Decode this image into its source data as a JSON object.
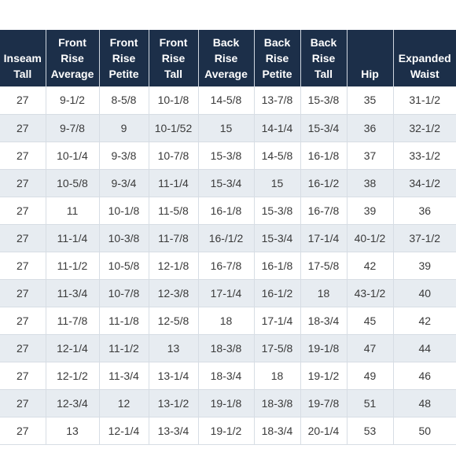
{
  "table": {
    "headers": [
      [
        "Inseam",
        "Tall"
      ],
      [
        "Front",
        "Rise",
        "Average"
      ],
      [
        "Front",
        "Rise",
        "Petite"
      ],
      [
        "Front",
        "Rise",
        "Tall"
      ],
      [
        "Back",
        "Rise",
        "Average"
      ],
      [
        "Back",
        "Rise",
        "Petite"
      ],
      [
        "Back",
        "Rise",
        "Tall"
      ],
      [
        "Hip"
      ],
      [
        "Expanded",
        "Waist"
      ]
    ],
    "rows": [
      [
        "27",
        "9-1/2",
        "8-5/8",
        "10-1/8",
        "14-5/8",
        "13-7/8",
        "15-3/8",
        "35",
        "31-1/2"
      ],
      [
        "27",
        "9-7/8",
        "9",
        "10-1/52",
        "15",
        "14-1/4",
        "15-3/4",
        "36",
        "32-1/2"
      ],
      [
        "27",
        "10-1/4",
        "9-3/8",
        "10-7/8",
        "15-3/8",
        "14-5/8",
        "16-1/8",
        "37",
        "33-1/2"
      ],
      [
        "27",
        "10-5/8",
        "9-3/4",
        "11-1/4",
        "15-3/4",
        "15",
        "16-1/2",
        "38",
        "34-1/2"
      ],
      [
        "27",
        "11",
        "10-1/8",
        "11-5/8",
        "16-1/8",
        "15-3/8",
        "16-7/8",
        "39",
        "36"
      ],
      [
        "27",
        "11-1/4",
        "10-3/8",
        "11-7/8",
        "16-/1/2",
        "15-3/4",
        "17-1/4",
        "40-1/2",
        "37-1/2"
      ],
      [
        "27",
        "11-1/2",
        "10-5/8",
        "12-1/8",
        "16-7/8",
        "16-1/8",
        "17-5/8",
        "42",
        "39"
      ],
      [
        "27",
        "11-3/4",
        "10-7/8",
        "12-3/8",
        "17-1/4",
        "16-1/2",
        "18",
        "43-1/2",
        "40"
      ],
      [
        "27",
        "11-7/8",
        "11-1/8",
        "12-5/8",
        "18",
        "17-1/4",
        "18-3/4",
        "45",
        "42"
      ],
      [
        "27",
        "12-1/4",
        "11-1/2",
        "13",
        "18-3/8",
        "17-5/8",
        "19-1/8",
        "47",
        "44"
      ],
      [
        "27",
        "12-1/2",
        "11-3/4",
        "13-1/4",
        "18-3/4",
        "18",
        "19-1/2",
        "49",
        "46"
      ],
      [
        "27",
        "12-3/4",
        "12",
        "13-1/2",
        "19-1/8",
        "18-3/8",
        "19-7/8",
        "51",
        "48"
      ],
      [
        "27",
        "13",
        "12-1/4",
        "13-3/4",
        "19-1/2",
        "18-3/4",
        "20-1/4",
        "53",
        "50"
      ]
    ]
  }
}
